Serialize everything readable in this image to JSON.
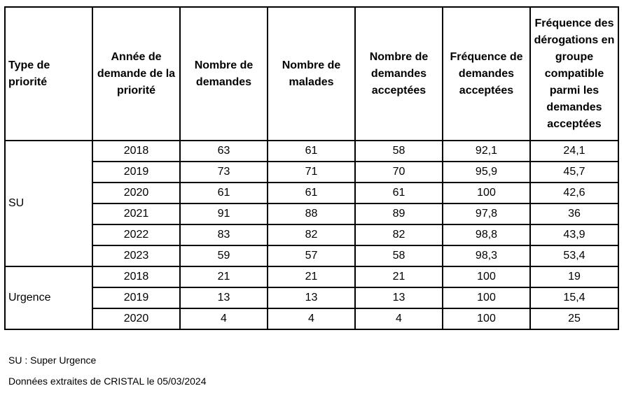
{
  "table": {
    "headers": [
      "Type de priorité",
      "Année de demande de la priorité",
      "Nombre de demandes",
      "Nombre de malades",
      "Nombre de demandes acceptées",
      "Fréquence de demandes acceptées",
      "Fréquence des dérogations en groupe compatible parmi les demandes acceptées"
    ],
    "groups": [
      {
        "type": "SU",
        "rows": [
          [
            "2018",
            "63",
            "61",
            "58",
            "92,1",
            "24,1"
          ],
          [
            "2019",
            "73",
            "71",
            "70",
            "95,9",
            "45,7"
          ],
          [
            "2020",
            "61",
            "61",
            "61",
            "100",
            "42,6"
          ],
          [
            "2021",
            "91",
            "88",
            "89",
            "97,8",
            "36"
          ],
          [
            "2022",
            "83",
            "82",
            "82",
            "98,8",
            "43,9"
          ],
          [
            "2023",
            "59",
            "57",
            "58",
            "98,3",
            "53,4"
          ]
        ]
      },
      {
        "type": "Urgence",
        "rows": [
          [
            "2018",
            "21",
            "21",
            "21",
            "100",
            "19"
          ],
          [
            "2019",
            "13",
            "13",
            "13",
            "100",
            "15,4"
          ],
          [
            "2020",
            "4",
            "4",
            "4",
            "100",
            "25"
          ]
        ]
      }
    ]
  },
  "footnotes": {
    "abbreviation": "SU : Super Urgence",
    "source": "Données extraites de CRISTAL le 05/03/2024"
  }
}
